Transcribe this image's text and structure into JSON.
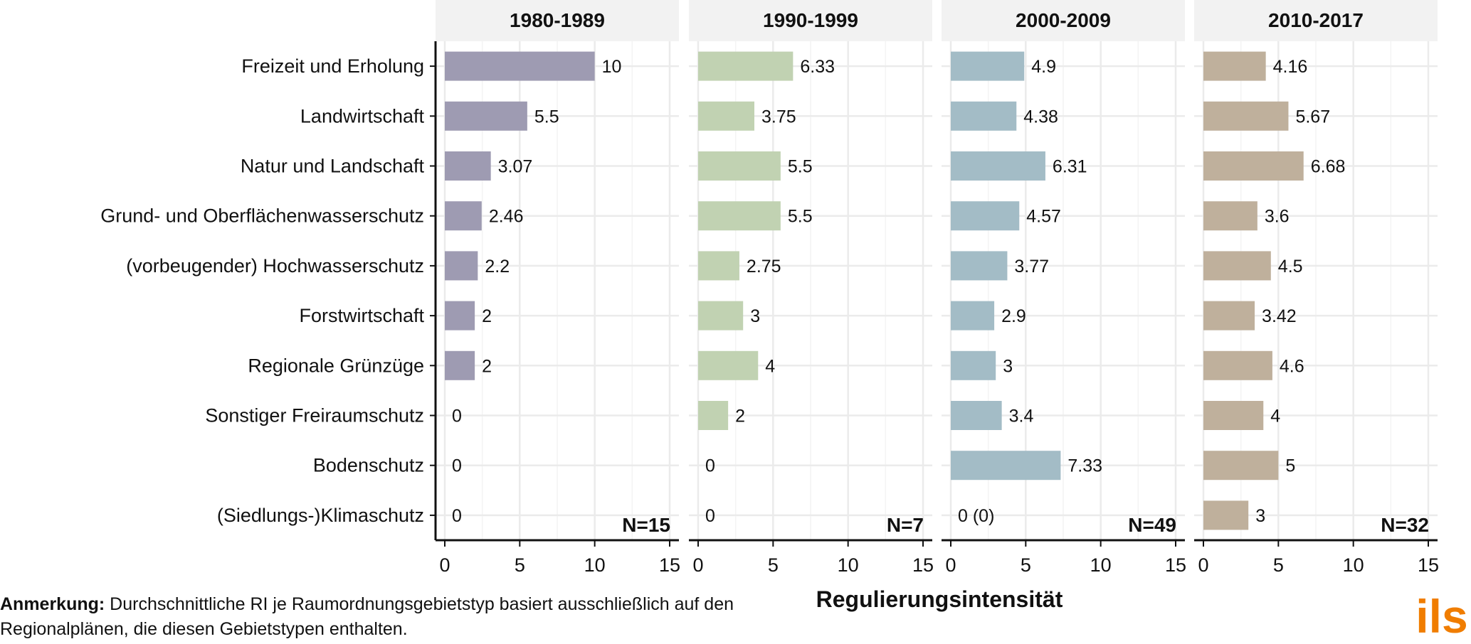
{
  "chart_data": {
    "type": "bar",
    "orientation": "horizontal",
    "facet_direction": "columns",
    "categories": [
      "Freizeit und Erholung",
      "Landwirtschaft",
      "Natur und Landschaft",
      "Grund- und Oberflächenwasserschutz",
      "(vorbeugender) Hochwasserschutz",
      "Forstwirtschaft",
      "Regionale Grünzüge",
      "Sonstiger Freiraumschutz ",
      "Bodenschutz",
      "(Siedlungs-)Klimaschutz"
    ],
    "xlim": [
      0,
      15
    ],
    "xticks": [
      0,
      5,
      10,
      15
    ],
    "xlabel": "Regulierungsintensität",
    "grid": true,
    "facets": [
      {
        "title": "1980-1989",
        "n_label": "N=15",
        "color": "#9e9bb2",
        "values": [
          10,
          5.5,
          3.07,
          2.46,
          2.2,
          2,
          2,
          0,
          0,
          0
        ],
        "value_labels": [
          "10",
          "5.5",
          "3.07",
          "2.46",
          "2.2",
          "2",
          "2",
          "0",
          "0",
          "0"
        ]
      },
      {
        "title": "1990-1999",
        "n_label": "N=7",
        "color": "#c1d2b2",
        "values": [
          6.33,
          3.75,
          5.5,
          5.5,
          2.75,
          3,
          4,
          2,
          0,
          0
        ],
        "value_labels": [
          "6.33",
          "3.75",
          "5.5",
          "5.5",
          "2.75",
          "3",
          "4",
          "2",
          "0",
          "0"
        ]
      },
      {
        "title": "2000-2009",
        "n_label": "N=49",
        "color": "#a3bcc6",
        "values": [
          4.9,
          4.38,
          6.31,
          4.57,
          3.77,
          2.9,
          3,
          3.4,
          7.33,
          0
        ],
        "value_labels": [
          "4.9",
          "4.38",
          "6.31",
          "4.57",
          "3.77",
          "2.9",
          "3",
          "3.4",
          "7.33",
          "0  (0)"
        ]
      },
      {
        "title": "2010-2017",
        "n_label": "N=32",
        "color": "#bfb09c",
        "values": [
          4.16,
          5.67,
          6.68,
          3.6,
          4.5,
          3.42,
          4.6,
          4,
          5,
          3
        ],
        "value_labels": [
          "4.16",
          "5.67",
          "6.68",
          "3.6",
          "4.5",
          "3.42",
          "4.6",
          "4",
          "5",
          "3"
        ]
      }
    ]
  },
  "note": {
    "label": "Anmerkung:",
    "text": " Durchschnittliche RI je Raumordnungsgebietstyp basiert ausschließlich auf den Regionalplänen, die diesen Gebietstypen enthalten."
  },
  "logo": {
    "text": "ils",
    "color": "#f07d00"
  }
}
